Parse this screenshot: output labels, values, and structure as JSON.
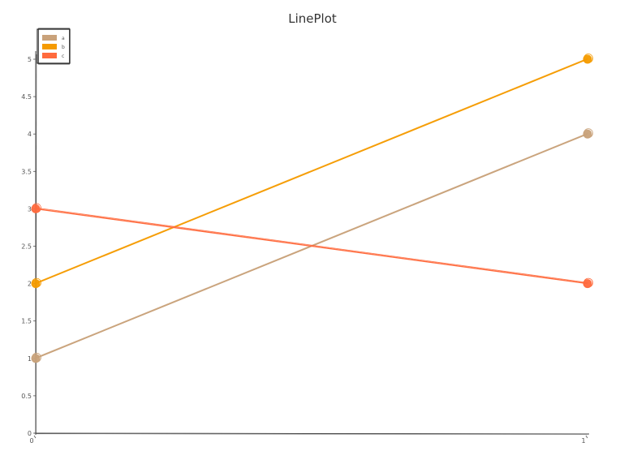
{
  "chart_data": {
    "type": "line",
    "title": "LinePlot",
    "xlabel": "",
    "ylabel": "",
    "x": [
      0,
      1
    ],
    "x_tick_labels": [
      "0",
      "1"
    ],
    "ylim": [
      0,
      5
    ],
    "y_ticks": [
      0,
      0.5,
      1,
      1.5,
      2,
      2.5,
      3,
      3.5,
      4,
      4.5,
      5
    ],
    "y_tick_labels": [
      "0",
      "0.5",
      "1",
      "1.5",
      "2",
      "2.5",
      "3",
      "3.5",
      "4",
      "4.5",
      "5"
    ],
    "grid": false,
    "legend_position": "top-left",
    "series": [
      {
        "name": "a",
        "values": [
          1,
          4
        ],
        "color": "#c9a27a"
      },
      {
        "name": "b",
        "values": [
          2,
          5
        ],
        "color": "#f59b00"
      },
      {
        "name": "c",
        "values": [
          3,
          2
        ],
        "color": "#ff6a3d"
      }
    ]
  }
}
